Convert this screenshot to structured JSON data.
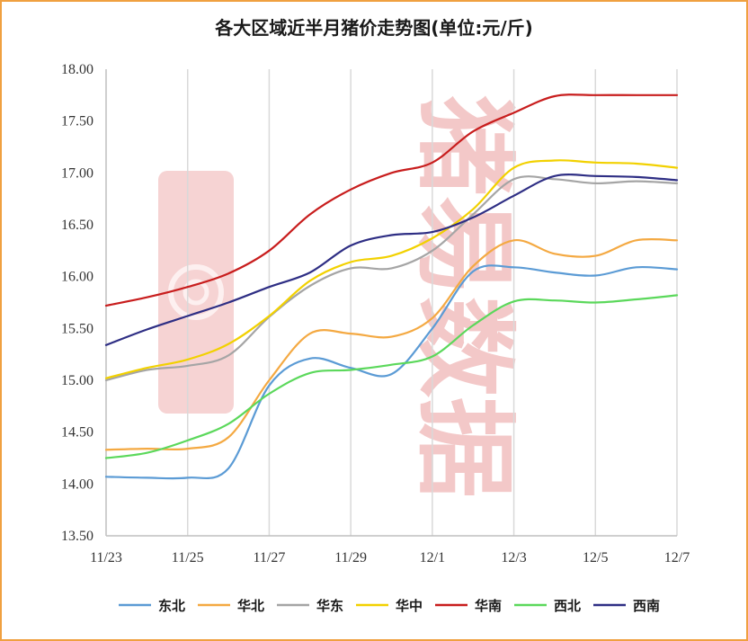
{
  "chart_data": {
    "type": "line",
    "title": "各大区域近半月猪价走势图(单位:元/斤)",
    "watermark": "猪易数据",
    "x": [
      "11/23",
      "11/24",
      "11/25",
      "11/26",
      "11/27",
      "11/28",
      "11/29",
      "11/30",
      "12/1",
      "12/2",
      "12/3",
      "12/4",
      "12/5",
      "12/6",
      "12/7"
    ],
    "x_tick_labels": [
      "11/23",
      "11/25",
      "11/27",
      "11/29",
      "12/1",
      "12/3",
      "12/5",
      "12/7"
    ],
    "ylim": [
      13.5,
      18.0
    ],
    "y_ticks": [
      "13.50",
      "14.00",
      "14.50",
      "15.00",
      "15.50",
      "16.00",
      "16.50",
      "17.00",
      "17.50",
      "18.00"
    ],
    "grid": "vertical",
    "legend_position": "bottom",
    "series": [
      {
        "name": "东北",
        "color": "#5b9bd5",
        "values": [
          14.07,
          14.06,
          14.06,
          14.15,
          14.95,
          15.21,
          15.12,
          15.06,
          15.5,
          16.05,
          16.09,
          16.04,
          16.01,
          16.09,
          16.07
        ]
      },
      {
        "name": "华北",
        "color": "#f4a942",
        "values": [
          14.33,
          14.34,
          14.34,
          14.45,
          15.0,
          15.45,
          15.45,
          15.42,
          15.6,
          16.1,
          16.35,
          16.22,
          16.2,
          16.35,
          16.35
        ]
      },
      {
        "name": "华东",
        "color": "#a5a5a5",
        "values": [
          15.0,
          15.1,
          15.14,
          15.24,
          15.61,
          15.91,
          16.08,
          16.08,
          16.25,
          16.6,
          16.94,
          16.94,
          16.9,
          16.92,
          16.9
        ]
      },
      {
        "name": "华中",
        "color": "#f2d100",
        "values": [
          15.02,
          15.12,
          15.2,
          15.35,
          15.62,
          15.96,
          16.14,
          16.2,
          16.37,
          16.65,
          17.05,
          17.12,
          17.1,
          17.09,
          17.05
        ]
      },
      {
        "name": "华南",
        "color": "#c81d1d",
        "values": [
          15.72,
          15.8,
          15.9,
          16.03,
          16.25,
          16.6,
          16.84,
          17.0,
          17.1,
          17.4,
          17.58,
          17.74,
          17.75,
          17.75,
          17.75
        ]
      },
      {
        "name": "西北",
        "color": "#5bd85b",
        "values": [
          14.25,
          14.3,
          14.42,
          14.58,
          14.87,
          15.07,
          15.1,
          15.15,
          15.23,
          15.53,
          15.76,
          15.77,
          15.75,
          15.78,
          15.82
        ]
      },
      {
        "name": "西南",
        "color": "#2e2e84",
        "values": [
          15.34,
          15.49,
          15.62,
          15.75,
          15.9,
          16.04,
          16.3,
          16.4,
          16.43,
          16.57,
          16.78,
          16.97,
          16.97,
          16.96,
          16.93
        ]
      }
    ]
  }
}
